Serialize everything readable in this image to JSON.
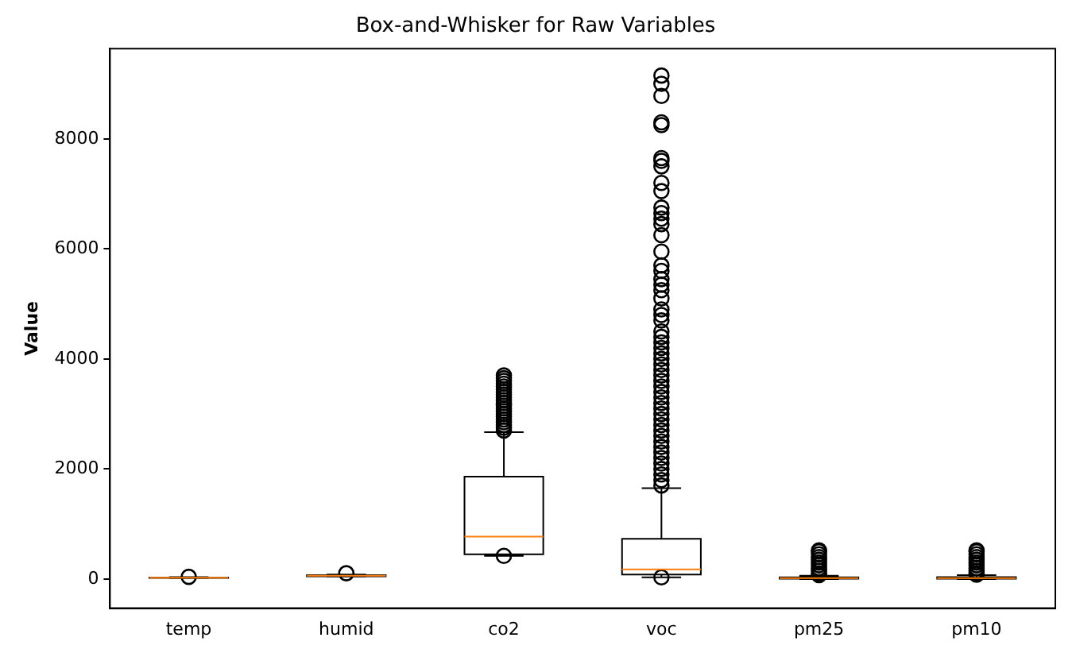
{
  "chart_data": {
    "type": "box",
    "title": "Box-and-Whisker for Raw Variables",
    "ylabel": "Value",
    "categories": [
      "temp",
      "humid",
      "co2",
      "voc",
      "pm25",
      "pm10"
    ],
    "boxes": [
      {
        "low": 15,
        "q1": 20,
        "median": 24,
        "q3": 28,
        "high": 35,
        "outliers": [
          40
        ]
      },
      {
        "low": 44,
        "q1": 50,
        "median": 60,
        "q3": 70,
        "high": 80,
        "outliers": [
          105
        ]
      },
      {
        "low": 420,
        "q1": 450,
        "median": 770,
        "q3": 1860,
        "high": 2670,
        "outliers": [
          420,
          2700,
          2750,
          2800,
          2850,
          2900,
          2950,
          3000,
          3050,
          3100,
          3150,
          3200,
          3250,
          3300,
          3350,
          3400,
          3450,
          3500,
          3550,
          3600,
          3650,
          3700
        ]
      },
      {
        "low": 30,
        "q1": 80,
        "median": 175,
        "q3": 730,
        "high": 1650,
        "outliers": [
          30,
          1700,
          1800,
          1900,
          2000,
          2100,
          2200,
          2300,
          2400,
          2500,
          2600,
          2700,
          2800,
          2900,
          3000,
          3100,
          3200,
          3300,
          3400,
          3500,
          3600,
          3700,
          3800,
          3900,
          4000,
          4100,
          4200,
          4300,
          4400,
          4500,
          4700,
          4800,
          4900,
          5100,
          5250,
          5350,
          5450,
          5600,
          5700,
          5950,
          6250,
          6450,
          6550,
          6650,
          6750,
          7050,
          7200,
          7500,
          7600,
          7650,
          8250,
          8300,
          8780,
          9000,
          9150
        ]
      },
      {
        "low": 0,
        "q1": 5,
        "median": 15,
        "q3": 30,
        "high": 60,
        "outliers": [
          70,
          100,
          150,
          200,
          250,
          300,
          350,
          400,
          450,
          500,
          520
        ]
      },
      {
        "low": 0,
        "q1": 5,
        "median": 18,
        "q3": 35,
        "high": 70,
        "outliers": [
          80,
          110,
          150,
          200,
          250,
          300,
          350,
          400,
          450,
          500,
          520
        ]
      }
    ],
    "color": "#000000",
    "marker": "circle",
    "ylim": [
      -530,
      9640
    ],
    "yticks": [
      0,
      2000,
      4000,
      6000,
      8000
    ],
    "grid": false,
    "legend": false
  }
}
